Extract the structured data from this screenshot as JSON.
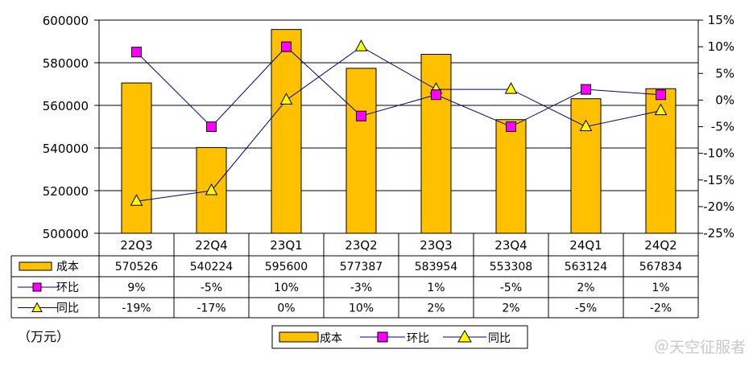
{
  "chart_data": {
    "type": "bar",
    "categories": [
      "22Q3",
      "22Q4",
      "23Q1",
      "23Q2",
      "23Q3",
      "23Q4",
      "24Q1",
      "24Q2"
    ],
    "series": [
      {
        "name": "成本",
        "type": "bar",
        "axis": "left",
        "values": [
          570526,
          540224,
          595600,
          577387,
          583954,
          553308,
          563124,
          567834
        ],
        "color": "#FFC000"
      },
      {
        "name": "环比",
        "type": "line",
        "axis": "right",
        "values": [
          9,
          -5,
          10,
          -3,
          1,
          -5,
          2,
          1
        ],
        "value_labels": [
          "9%",
          "-5%",
          "10%",
          "-3%",
          "1%",
          "-5%",
          "2%",
          "1%"
        ],
        "color": "#FF00FF"
      },
      {
        "name": "同比",
        "type": "line",
        "axis": "right",
        "values": [
          -19,
          -17,
          0,
          10,
          2,
          2,
          -5,
          -2
        ],
        "value_labels": [
          "-19%",
          "-17%",
          "0%",
          "10%",
          "2%",
          "2%",
          "-5%",
          "-2%"
        ],
        "color": "#FFFF00"
      }
    ],
    "ylim_left": [
      500000,
      600000
    ],
    "yticks_left": [
      "500000",
      "520000",
      "540000",
      "560000",
      "580000",
      "600000"
    ],
    "ylim_right": [
      -25,
      15
    ],
    "yticks_right": [
      "-25%",
      "-20%",
      "-15%",
      "-10%",
      "-5%",
      "0%",
      "5%",
      "10%",
      "15%"
    ],
    "grid": true,
    "legend": "bottom",
    "data_table": true,
    "unit_label": "（万元）"
  },
  "watermark": "＠天空征服者"
}
